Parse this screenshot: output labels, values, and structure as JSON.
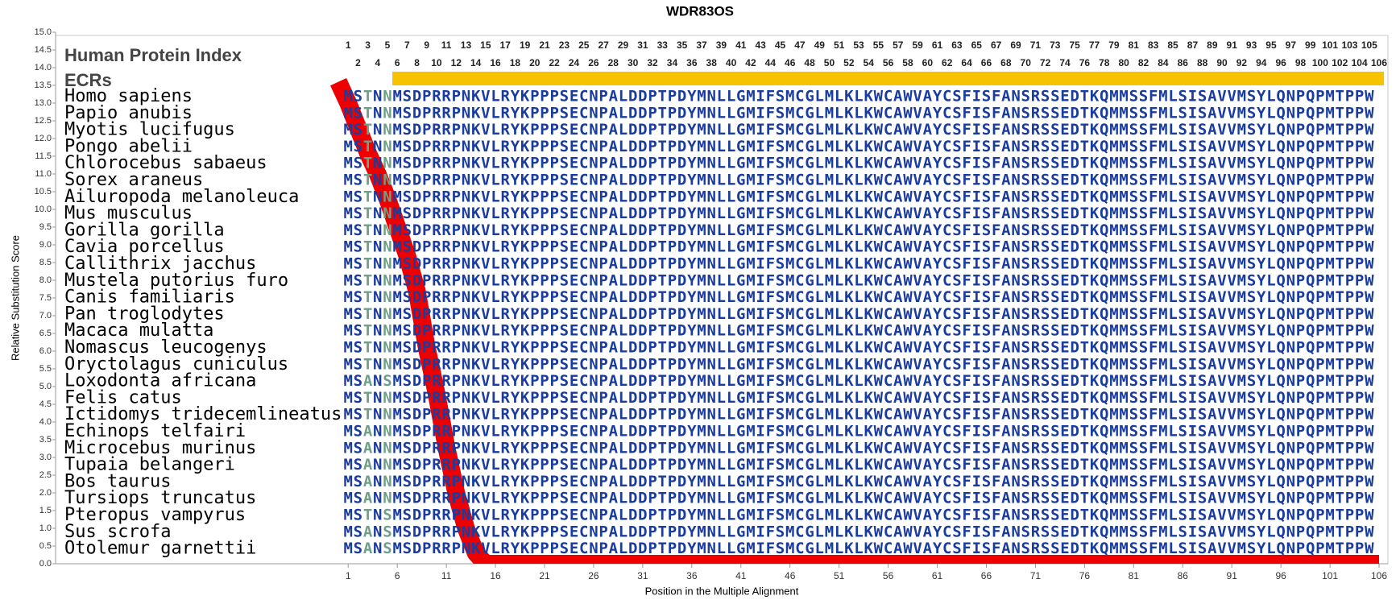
{
  "chart_data": {
    "type": "alignment",
    "title": "WDR83OS",
    "ylabel": "Relative Substitution Score",
    "xlabel": "Position in the Multiple Alignment",
    "index_label": "Human Protein Index",
    "ecr_label": "ECRs",
    "ylim": [
      0,
      15
    ],
    "xlim": [
      -28.8,
      106.9
    ],
    "yticks": [
      {
        "value": 0,
        "label": "0.0"
      },
      {
        "value": 0.5,
        "label": "0.5"
      },
      {
        "value": 1,
        "label": "1.0"
      },
      {
        "value": 1.5,
        "label": "1.5"
      },
      {
        "value": 2,
        "label": "2.0"
      },
      {
        "value": 2.5,
        "label": "2.5"
      },
      {
        "value": 3,
        "label": "3.0"
      },
      {
        "value": 3.5,
        "label": "3.5"
      },
      {
        "value": 4,
        "label": "4.0"
      },
      {
        "value": 4.5,
        "label": "4.5"
      },
      {
        "value": 5,
        "label": "5.0"
      },
      {
        "value": 5.5,
        "label": "5.5"
      },
      {
        "value": 6,
        "label": "6.0"
      },
      {
        "value": 6.5,
        "label": "6.5"
      },
      {
        "value": 7,
        "label": "7.0"
      },
      {
        "value": 7.5,
        "label": "7.5"
      },
      {
        "value": 8,
        "label": "8.0"
      },
      {
        "value": 8.5,
        "label": "8.5"
      },
      {
        "value": 9,
        "label": "9.0"
      },
      {
        "value": 9.5,
        "label": "9.5"
      },
      {
        "value": 10,
        "label": "10.0"
      },
      {
        "value": 10.5,
        "label": "10.5"
      },
      {
        "value": 11,
        "label": "11.0"
      },
      {
        "value": 11.5,
        "label": "11.5"
      },
      {
        "value": 12,
        "label": "12.0"
      },
      {
        "value": 12.5,
        "label": "12.5"
      },
      {
        "value": 13,
        "label": "13.0"
      },
      {
        "value": 13.5,
        "label": "13.5"
      },
      {
        "value": 14,
        "label": "14.0"
      },
      {
        "value": 14.5,
        "label": "14.5"
      },
      {
        "value": 15,
        "label": "15.0"
      }
    ],
    "xticks": [
      1,
      6,
      11,
      16,
      21,
      26,
      31,
      36,
      41,
      46,
      51,
      56,
      61,
      66,
      71,
      76,
      81,
      86,
      91,
      96,
      101,
      106
    ],
    "human_index": [
      1,
      2,
      3,
      4,
      5,
      6,
      7,
      8,
      9,
      10,
      11,
      12,
      13,
      14,
      15,
      16,
      17,
      18,
      19,
      20,
      21,
      22,
      23,
      24,
      25,
      26,
      27,
      28,
      29,
      30,
      31,
      32,
      33,
      34,
      35,
      36,
      37,
      38,
      39,
      40,
      41,
      42,
      43,
      44,
      45,
      46,
      47,
      48,
      49,
      50,
      51,
      52,
      53,
      54,
      55,
      56,
      57,
      58,
      59,
      60,
      61,
      62,
      63,
      64,
      65,
      66,
      67,
      68,
      69,
      70,
      71,
      72,
      73,
      74,
      75,
      76,
      77,
      78,
      79,
      80,
      81,
      82,
      83,
      84,
      85,
      86,
      87,
      88,
      89,
      90,
      91,
      92,
      93,
      94,
      95,
      96,
      97,
      98,
      99,
      100,
      101,
      102,
      103,
      104,
      105,
      106
    ],
    "ecrs": [
      {
        "start": 6,
        "end": 106,
        "color": "#f7c200"
      }
    ],
    "conserved_color": "#1a3c9e",
    "variable_color": "#6f9f86",
    "line": {
      "color": "#ee0000",
      "x": [
        0,
        1,
        2,
        3,
        4,
        5,
        6,
        7,
        8,
        9,
        10,
        11,
        12,
        13,
        14,
        15,
        106
      ],
      "values": [
        13.6,
        13.0,
        12.3,
        11.6,
        11.0,
        10.3,
        9.5,
        8.7,
        7.7,
        6.1,
        4.8,
        3.3,
        2.0,
        1.0,
        0.3,
        0,
        0
      ]
    },
    "rows": [
      {
        "species": "Homo sapiens",
        "sequence": "MSTNNMSDPRRPNKVLRYKPPPSECNPALDDPTPDYMNLLGMIFSMCGLMLKLKWCAWVAYCSFISFANSRSSEDTKQMMSSFMLSISAVVMSYLQNPQPMTPPW"
      },
      {
        "species": "Papio anubis",
        "sequence": "MSTNNMSDPRRPNKVLRYKPPPSECNPALDDPTPDYMNLLGMIFSMCGLMLKLKWCAWVAYCSFISFANSRSSEDTKQMMSSFMLSISAVVMSYLQNPQPMTPPW"
      },
      {
        "species": "Myotis lucifugus",
        "sequence": "MSTNNMSDPRRPNKVLRYKPPPSECNPALDDPTPDYMNLLGMIFSMCGLMLKLKWCAWVAYCSFISFANSRSSEDTKQMMSSFMLSISAVVMSYLQNPQPMTPPW"
      },
      {
        "species": "Pongo abelii",
        "sequence": "MSTNNMSDPRRPNKVLRYKPPPSECNPALDDPTPDYMNLLGMIFSMCGLMLKLKWCAWVAYCSFISFANSRSSEDTKQMMSSFMLSISAVVMSYLQNPQPMTPPW"
      },
      {
        "species": "Chlorocebus sabaeus",
        "sequence": "MSTNNMSDPRRPNKVLRYKPPPSECNPALDDPTPDYMNLLGMIFSMCGLMLKLKWCAWVAYCSFISFANSRSSEDTKQMMSSFMLSISAVVMSYLQNPQPMTPPW"
      },
      {
        "species": "Sorex araneus",
        "sequence": "MSTNNMSDPRRPNKVLRYKPPPSECNPALDDPTPDYMNLLGMIFSMCGLMLKLKWCAWVAYCSFISFANSRSSEDTKQMMSSFMLSISAVVMSYLQNPQPMTPPW"
      },
      {
        "species": "Ailuropoda melanoleuca",
        "sequence": "MSTNNMSDPRRPNKVLRYKPPPSECNPALDDPTPDYMNLLGMIFSMCGLMLKLKWCAWVAYCSFISFANSRSSEDTKQMMSSFMLSISAVVMSYLQNPQPMTPPW"
      },
      {
        "species": "Mus musculus",
        "sequence": "MSTNNMSDPRRPNKVLRYKPPPSECNPALDDPTPDYMNLLGMIFSMCGLMLKLKWCAWVAYCSFISFANSRSSEDTKQMMSSFMLSISAVVMSYLQNPQPMTPPW"
      },
      {
        "species": "Gorilla gorilla",
        "sequence": "MSTNNMSDPRRPNKVLRYKPPPSECNPALDDPTPDYMNLLGMIFSMCGLMLKLKWCAWVAYCSFISFANSRSSEDTKQMMSSFMLSISAVVMSYLQNPQPMTPPW"
      },
      {
        "species": "Cavia porcellus",
        "sequence": "MSTNNMSDPRRPNKVLRYKPPPSECNPALDDPTPDYMNLLGMIFSMCGLMLKLKWCAWVAYCSFISFANSRSSEDTKQMMSSFMLSISAVVMSYLQNPQPMTPPW"
      },
      {
        "species": "Callithrix jacchus",
        "sequence": "MSTNNMSDPRRPNKVLRYKPPPSECNPALDDPTPDYMNLLGMIFSMCGLMLKLKWCAWVAYCSFISFANSRSSEDTKQMMSSFMLSISAVVMSYLQNPQPMTPPW"
      },
      {
        "species": "Mustela putorius furo",
        "sequence": "MSTNNMSDPRRPNKVLRYKPPPSECNPALDDPTPDYMNLLGMIFSMCGLMLKLKWCAWVAYCSFISFANSRSSEDTKQMMSSFMLSISAVVMSYLQNPQPMTPPW"
      },
      {
        "species": "Canis familiaris",
        "sequence": "MSTNNMSDPRRPNKVLRYKPPPSECNPALDDPTPDYMNLLGMIFSMCGLMLKLKWCAWVAYCSFISFANSRSSEDTKQMMSSFMLSISAVVMSYLQNPQPMTPPW"
      },
      {
        "species": "Pan troglodytes",
        "sequence": "MSTNNMSDPRRPNKVLRYKPPPSECNPALDDPTPDYMNLLGMIFSMCGLMLKLKWCAWVAYCSFISFANSRSSEDTKQMMSSFMLSISAVVMSYLQNPQPMTPPW"
      },
      {
        "species": "Macaca mulatta",
        "sequence": "MSTNNMSDPRRPNKVLRYKPPPSECNPALDDPTPDYMNLLGMIFSMCGLMLKLKWCAWVAYCSFISFANSRSSEDTKQMMSSFMLSISAVVMSYLQNPQPMTPPW"
      },
      {
        "species": "Nomascus leucogenys",
        "sequence": "MSTNNMSDPRRPNKVLRYKPPPSECNPALDDPTPDYMNLLGMIFSMCGLMLKLKWCAWVAYCSFISFANSRSSEDTKQMMSSFMLSISAVVMSYLQNPQPMTPPW"
      },
      {
        "species": "Oryctolagus cuniculus",
        "sequence": "MSTNNMSDPRRPNKVLRYKPPPSECNPALDDPTPDYMNLLGMIFSMCGLMLKLKWCAWVAYCSFISFANSRSSEDTKQMMSSFMLSISAVVMSYLQNPQPMTPPW"
      },
      {
        "species": "Loxodonta africana",
        "sequence": "MSANSMSDPRRPNKVLRYKPPPSECNPALDDPTPDYMNLLGMIFSMCGLMLKLKWCAWVAYCSFISFANSRSSEDTKQMMSSFMLSISAVVMSYLQNPQPMTPPW"
      },
      {
        "species": "Felis catus",
        "sequence": "MSTNNMSDPRRPNKVLRYKPPPSECNPALDDPTPDYMNLLGMIFSMCGLMLKLKWCAWVAYCSFISFANSRSSEDTKQMMSSFMLSISAVVMSYLQNPQPMTPPW"
      },
      {
        "species": "Ictidomys tridecemlineatus",
        "sequence": "MSTNNMSDPRRPNKVLRYKPPPSECNPALDDPTPDYMNLLGMIFSMCGLMLKLKWCAWVAYCSFISFANSRSSEDTKQMMSSFMLSISAVVMSYLQNPQPMTPPW"
      },
      {
        "species": "Echinops telfairi",
        "sequence": "MSANNMSDPRRPNKVLRYKPPPSECNPALDDPTPDYMNLLGMIFSMCGLMLKLKWCAWVAYCSFISFANSRSSEDTKQMMSSFMLSISAVVMSYLQNPQPMTPPW"
      },
      {
        "species": "Microcebus murinus",
        "sequence": "MSANNMSDPRRPNKVLRYKPPPSECNPALDDPTPDYMNLLGMIFSMCGLMLKLKWCAWVAYCSFISFANSRSSEDTKQMMSSFMLSISAVVMSYLQNPQPMTPPW"
      },
      {
        "species": "Tupaia belangeri",
        "sequence": "MSANNMSDPRRPNKVLRYKPPPSECNPALDDPTPDYMNLLGMIFSMCGLMLKLKWCAWVAYCSFISFANSRSSEDTKQMMSSFMLSISAVVMSYLQNPQPMTPPW"
      },
      {
        "species": "Bos taurus",
        "sequence": "MSANNMSDPRRPNKVLRYKPPPSECNPALDDPTPDYMNLLGMIFSMCGLMLKLKWCAWVAYCSFISFANSRSSEDTKQMMSSFMLSISAVVMSYLQNPQPMTPPW"
      },
      {
        "species": "Tursiops truncatus",
        "sequence": "MSANNMSDPRRPNKVLRYKPPPSECNPALDDPTPDYMNLLGMIFSMCGLMLKLKWCAWVAYCSFISFANSRSSEDTKQMMSSFMLSISAVVMSYLQNPQPMTPPW"
      },
      {
        "species": "Pteropus vampyrus",
        "sequence": "MSTNSMSDPRRPNKVLRYKPPPSECNPALDDPTPDYMNLLGMIFSMCGLMLKLKWCAWVAYCSFISFANSRSSEDTKQMMSSFMLSISAVVMSYLQNPQPMTPPW"
      },
      {
        "species": "Sus scrofa",
        "sequence": "MSANSMSDPRRPNKVLRYKPPPSECNPALDDPTPDYMNLLGMIFSMCGLMLKLKWCAWVAYCSFISFANSRSSEDTKQMMSSFMLSISAVVMSYLQNPQPMTPPW"
      },
      {
        "species": "Otolemur garnettii",
        "sequence": "MSANSMSDPRRPNKVLRYKPPPSECNPALDDPTPDYMNLLGMIFSMCGLMLKLKWCAWVAYCSFISFANSRSSEDTKQMMSSFMLSISAVVMSYLQNPQPMTPPW"
      }
    ]
  }
}
